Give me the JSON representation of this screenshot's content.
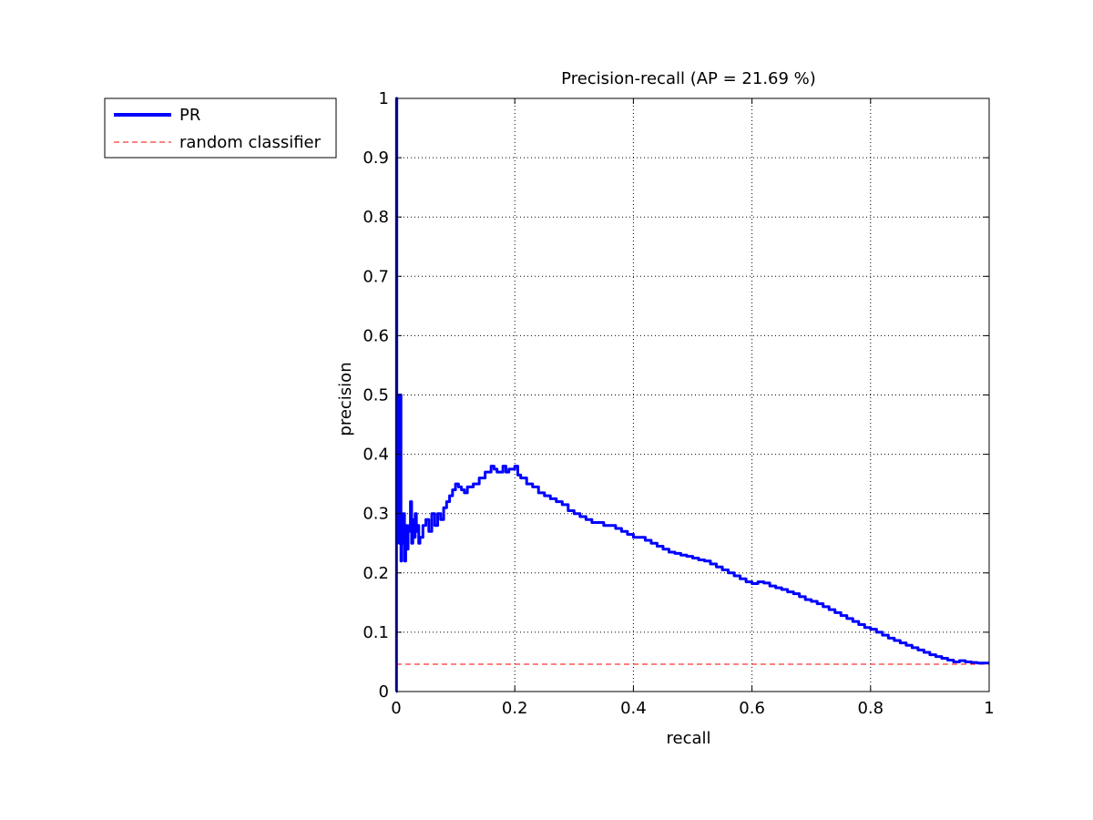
{
  "chart_data": {
    "type": "line",
    "title": "Precision-recall (AP = 21.69 %)",
    "xlabel": "recall",
    "ylabel": "precision",
    "xlim": [
      0,
      1
    ],
    "ylim": [
      0,
      1
    ],
    "xticks": [
      0,
      0.2,
      0.4,
      0.6,
      0.8,
      1
    ],
    "yticks": [
      0,
      0.1,
      0.2,
      0.3,
      0.4,
      0.5,
      0.6,
      0.7,
      0.8,
      0.9,
      1
    ],
    "xtick_labels": [
      "0",
      "0.2",
      "0.4",
      "0.6",
      "0.8",
      "1"
    ],
    "ytick_labels": [
      "0",
      "0.1",
      "0.2",
      "0.3",
      "0.4",
      "0.5",
      "0.6",
      "0.7",
      "0.8",
      "0.9",
      "1"
    ],
    "grid": true,
    "legend": "outside-top-left",
    "series": [
      {
        "name": "PR",
        "color": "#0000ff",
        "style": "solid",
        "x": [
          0.0,
          0.0005,
          0.001,
          0.0015,
          0.002,
          0.003,
          0.004,
          0.005,
          0.0055,
          0.006,
          0.007,
          0.008,
          0.009,
          0.01,
          0.012,
          0.014,
          0.016,
          0.018,
          0.02,
          0.022,
          0.024,
          0.026,
          0.028,
          0.03,
          0.032,
          0.034,
          0.036,
          0.038,
          0.04,
          0.045,
          0.05,
          0.055,
          0.06,
          0.065,
          0.07,
          0.075,
          0.08,
          0.085,
          0.09,
          0.095,
          0.1,
          0.105,
          0.11,
          0.115,
          0.12,
          0.13,
          0.14,
          0.15,
          0.16,
          0.165,
          0.17,
          0.18,
          0.185,
          0.19,
          0.2,
          0.205,
          0.21,
          0.22,
          0.23,
          0.24,
          0.25,
          0.26,
          0.27,
          0.28,
          0.29,
          0.3,
          0.31,
          0.32,
          0.33,
          0.34,
          0.35,
          0.36,
          0.37,
          0.38,
          0.39,
          0.4,
          0.41,
          0.42,
          0.43,
          0.44,
          0.45,
          0.46,
          0.47,
          0.48,
          0.49,
          0.5,
          0.51,
          0.52,
          0.53,
          0.54,
          0.55,
          0.56,
          0.57,
          0.58,
          0.59,
          0.6,
          0.61,
          0.62,
          0.63,
          0.64,
          0.65,
          0.66,
          0.67,
          0.68,
          0.69,
          0.7,
          0.71,
          0.72,
          0.73,
          0.74,
          0.75,
          0.76,
          0.77,
          0.78,
          0.79,
          0.8,
          0.81,
          0.82,
          0.83,
          0.84,
          0.85,
          0.86,
          0.87,
          0.88,
          0.89,
          0.9,
          0.91,
          0.92,
          0.93,
          0.94,
          0.95,
          0.96,
          0.97,
          0.98,
          0.99,
          1.0
        ],
        "y": [
          0.0,
          1.0,
          0.25,
          0.4,
          0.3,
          0.33,
          0.45,
          0.5,
          0.25,
          0.4,
          0.5,
          0.22,
          0.3,
          0.25,
          0.3,
          0.22,
          0.28,
          0.24,
          0.27,
          0.28,
          0.32,
          0.25,
          0.29,
          0.26,
          0.3,
          0.27,
          0.28,
          0.25,
          0.26,
          0.28,
          0.29,
          0.27,
          0.3,
          0.28,
          0.3,
          0.29,
          0.31,
          0.32,
          0.33,
          0.34,
          0.35,
          0.345,
          0.34,
          0.335,
          0.345,
          0.35,
          0.36,
          0.37,
          0.38,
          0.375,
          0.37,
          0.38,
          0.37,
          0.375,
          0.38,
          0.365,
          0.36,
          0.35,
          0.345,
          0.335,
          0.33,
          0.325,
          0.32,
          0.315,
          0.305,
          0.3,
          0.295,
          0.29,
          0.285,
          0.285,
          0.28,
          0.28,
          0.275,
          0.27,
          0.265,
          0.26,
          0.26,
          0.255,
          0.25,
          0.245,
          0.24,
          0.235,
          0.233,
          0.23,
          0.228,
          0.225,
          0.222,
          0.22,
          0.215,
          0.21,
          0.205,
          0.2,
          0.195,
          0.19,
          0.185,
          0.182,
          0.185,
          0.183,
          0.178,
          0.175,
          0.172,
          0.168,
          0.165,
          0.16,
          0.155,
          0.152,
          0.148,
          0.143,
          0.138,
          0.133,
          0.128,
          0.123,
          0.118,
          0.113,
          0.108,
          0.105,
          0.1,
          0.095,
          0.09,
          0.086,
          0.082,
          0.078,
          0.074,
          0.07,
          0.066,
          0.062,
          0.059,
          0.056,
          0.053,
          0.05,
          0.052,
          0.05,
          0.049,
          0.048,
          0.048,
          0.048
        ]
      },
      {
        "name": "random classifier",
        "color": "#ff0000",
        "style": "dashed",
        "x": [
          0,
          1
        ],
        "y": [
          0.046,
          0.046
        ]
      }
    ]
  }
}
